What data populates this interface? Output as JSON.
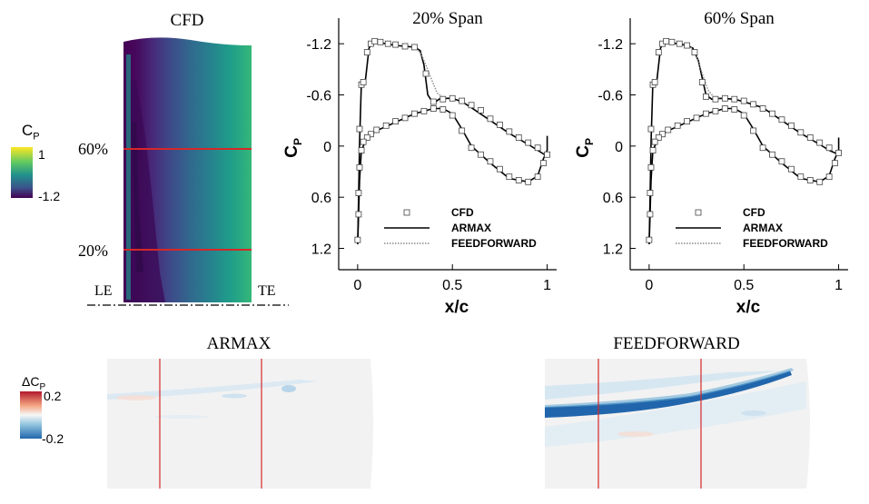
{
  "cfd_panel": {
    "title": "CFD",
    "span_labels": [
      "60%",
      "20%"
    ],
    "le_label": "LE",
    "te_label": "TE",
    "colorbar": {
      "label": "C",
      "label_sub": "P",
      "max_label": "1",
      "min_label": "-1.2",
      "colors": [
        "#fde725",
        "#21918c",
        "#440154"
      ]
    },
    "line_color": "#d62728"
  },
  "bottom_colorbar": {
    "label": "ΔC",
    "label_sub": "P",
    "max_label": "0.2",
    "min_label": "-0.2",
    "colors": [
      "#b2182b",
      "#f7f7f7",
      "#2166ac"
    ]
  },
  "error_maps": [
    {
      "title": "ARMAX"
    },
    {
      "title": "FEEDFORWARD"
    }
  ],
  "chart_data": [
    {
      "type": "line",
      "title": "20% Span",
      "xlabel": "x/c",
      "ylabel": "C",
      "ylabel_sub": "P",
      "xlim": [
        -0.1,
        1.05
      ],
      "ylim": [
        1.45,
        -1.5
      ],
      "xticks": [
        0,
        0.5,
        1
      ],
      "yticks": [
        -1.2,
        -0.6,
        0,
        0.6,
        1.2
      ],
      "legend": [
        "CFD",
        "ARMAX",
        "FEEDFORWARD"
      ],
      "legend_position": "bottom-right",
      "series": [
        {
          "name": "ARMAX",
          "style": "solid",
          "x": [
            0,
            0.005,
            0.01,
            0.02,
            0.04,
            0.06,
            0.08,
            0.1,
            0.15,
            0.2,
            0.25,
            0.3,
            0.33,
            0.35,
            0.37,
            0.4,
            0.43,
            0.46,
            0.5,
            0.55,
            0.6,
            0.7,
            0.8,
            0.9,
            0.95,
            1.0
          ],
          "y": [
            1.15,
            0.6,
            -0.05,
            -0.75,
            -0.75,
            -1.15,
            -1.22,
            -1.22,
            -1.2,
            -1.18,
            -1.17,
            -1.16,
            -1.12,
            -0.95,
            -0.6,
            -0.5,
            -0.55,
            -0.56,
            -0.56,
            -0.52,
            -0.45,
            -0.3,
            -0.15,
            -0.02,
            0.05,
            0.12
          ]
        },
        {
          "name": "ARMAX lower",
          "style": "solid",
          "x": [
            0,
            0.005,
            0.01,
            0.02,
            0.05,
            0.1,
            0.2,
            0.3,
            0.4,
            0.45,
            0.5,
            0.55,
            0.6,
            0.7,
            0.8,
            0.9,
            0.95,
            0.98,
            1.0,
            1.0
          ],
          "y": [
            1.15,
            0.8,
            0.4,
            0.05,
            -0.1,
            -0.18,
            -0.28,
            -0.38,
            -0.44,
            -0.44,
            -0.38,
            -0.2,
            0,
            0.2,
            0.38,
            0.42,
            0.35,
            0.15,
            0.05,
            -0.12
          ]
        },
        {
          "name": "FEEDFORWARD",
          "style": "dotted",
          "x": [
            0.3,
            0.33,
            0.36,
            0.39,
            0.42,
            0.46
          ],
          "y": [
            -1.16,
            -1.1,
            -0.95,
            -0.78,
            -0.62,
            -0.56
          ]
        }
      ],
      "cfd_points": {
        "x": [
          0,
          0.005,
          0.01,
          0.02,
          0.03,
          0.05,
          0.07,
          0.09,
          0.12,
          0.16,
          0.2,
          0.25,
          0.3,
          0.36,
          0.4,
          0.45,
          0.5,
          0.55,
          0.6,
          0.65,
          0.7,
          0.75,
          0.8,
          0.85,
          0.9,
          0.95,
          1.0,
          0.98,
          0.95,
          0.9,
          0.85,
          0.8,
          0.75,
          0.7,
          0.65,
          0.6,
          0.55,
          0.5,
          0.45,
          0.4,
          0.35,
          0.3,
          0.25,
          0.2,
          0.15,
          0.1,
          0.07,
          0.05,
          0.03,
          0.02,
          0.01,
          0.005
        ],
        "y": [
          1.1,
          0.55,
          -0.2,
          -0.72,
          -0.75,
          -1.1,
          -1.2,
          -1.23,
          -1.22,
          -1.2,
          -1.19,
          -1.17,
          -1.16,
          -0.85,
          -0.52,
          -0.55,
          -0.56,
          -0.53,
          -0.48,
          -0.42,
          -0.32,
          -0.25,
          -0.17,
          -0.1,
          -0.04,
          0.02,
          0.1,
          0.2,
          0.36,
          0.42,
          0.4,
          0.36,
          0.27,
          0.18,
          0.1,
          0.02,
          -0.18,
          -0.36,
          -0.43,
          -0.44,
          -0.41,
          -0.38,
          -0.33,
          -0.29,
          -0.24,
          -0.19,
          -0.14,
          -0.1,
          -0.05,
          0.05,
          0.25,
          0.8
        ]
      }
    },
    {
      "type": "line",
      "title": "60% Span",
      "xlabel": "x/c",
      "ylabel": "C",
      "ylabel_sub": "P",
      "xlim": [
        -0.1,
        1.05
      ],
      "ylim": [
        1.45,
        -1.5
      ],
      "xticks": [
        0,
        0.5,
        1
      ],
      "yticks": [
        -1.2,
        -0.6,
        0,
        0.6,
        1.2
      ],
      "legend": [
        "CFD",
        "ARMAX",
        "FEEDFORWARD"
      ],
      "legend_position": "bottom-right",
      "series": [
        {
          "name": "ARMAX",
          "style": "solid",
          "x": [
            0,
            0.005,
            0.01,
            0.02,
            0.04,
            0.06,
            0.08,
            0.1,
            0.15,
            0.2,
            0.23,
            0.26,
            0.28,
            0.3,
            0.33,
            0.38,
            0.45,
            0.5,
            0.6,
            0.7,
            0.8,
            0.9,
            0.95,
            1.0
          ],
          "y": [
            1.15,
            0.6,
            -0.05,
            -0.75,
            -0.75,
            -1.15,
            -1.22,
            -1.22,
            -1.2,
            -1.18,
            -1.15,
            -1.0,
            -0.8,
            -0.6,
            -0.55,
            -0.56,
            -0.55,
            -0.52,
            -0.45,
            -0.3,
            -0.15,
            -0.02,
            0.05,
            0.1
          ]
        },
        {
          "name": "ARMAX lower",
          "style": "solid",
          "x": [
            0,
            0.005,
            0.01,
            0.02,
            0.05,
            0.1,
            0.2,
            0.3,
            0.4,
            0.45,
            0.5,
            0.55,
            0.6,
            0.7,
            0.8,
            0.9,
            0.95,
            0.98,
            1.0,
            1.0
          ],
          "y": [
            1.15,
            0.8,
            0.4,
            0.05,
            -0.1,
            -0.18,
            -0.28,
            -0.38,
            -0.44,
            -0.44,
            -0.38,
            -0.2,
            0,
            0.2,
            0.38,
            0.42,
            0.35,
            0.15,
            0.05,
            -0.1
          ]
        },
        {
          "name": "FEEDFORWARD",
          "style": "dotted",
          "x": [
            0.22,
            0.25,
            0.28,
            0.31,
            0.34,
            0.38
          ],
          "y": [
            -1.16,
            -1.05,
            -0.85,
            -0.66,
            -0.58,
            -0.56
          ]
        }
      ],
      "cfd_points": {
        "x": [
          0,
          0.005,
          0.01,
          0.02,
          0.03,
          0.05,
          0.07,
          0.09,
          0.12,
          0.16,
          0.2,
          0.24,
          0.28,
          0.3,
          0.35,
          0.4,
          0.45,
          0.5,
          0.55,
          0.6,
          0.65,
          0.7,
          0.75,
          0.8,
          0.85,
          0.9,
          0.95,
          1.0,
          0.98,
          0.95,
          0.9,
          0.85,
          0.8,
          0.75,
          0.7,
          0.65,
          0.6,
          0.55,
          0.5,
          0.45,
          0.4,
          0.35,
          0.3,
          0.25,
          0.2,
          0.15,
          0.1,
          0.07,
          0.05,
          0.03,
          0.02,
          0.01,
          0.005
        ],
        "y": [
          1.1,
          0.55,
          -0.2,
          -0.72,
          -0.75,
          -1.1,
          -1.2,
          -1.23,
          -1.22,
          -1.2,
          -1.18,
          -1.1,
          -0.75,
          -0.58,
          -0.55,
          -0.56,
          -0.55,
          -0.53,
          -0.49,
          -0.44,
          -0.38,
          -0.31,
          -0.24,
          -0.16,
          -0.1,
          -0.04,
          0.02,
          0.08,
          0.2,
          0.36,
          0.42,
          0.4,
          0.36,
          0.27,
          0.18,
          0.1,
          0.02,
          -0.18,
          -0.36,
          -0.43,
          -0.44,
          -0.41,
          -0.38,
          -0.33,
          -0.29,
          -0.24,
          -0.19,
          -0.14,
          -0.1,
          -0.05,
          0.05,
          0.25,
          0.8
        ]
      }
    }
  ]
}
